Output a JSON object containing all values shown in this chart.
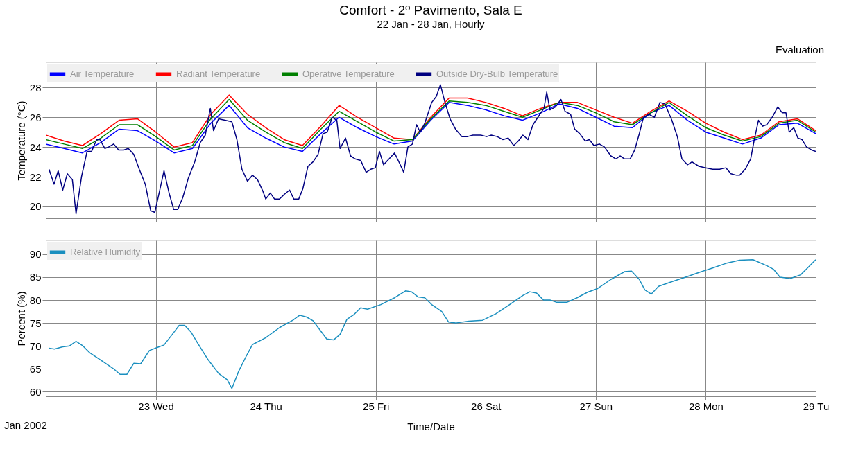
{
  "chart_data": [
    {
      "type": "line",
      "title": "Comfort - 2º Pavimento, Sala E",
      "subtitle": "22 Jan - 28 Jan, Hourly",
      "ylabel": "Temperature (°C)",
      "annotations": [
        "Evaluation"
      ],
      "xlim": [
        "2002-01-22T00:00",
        "2002-01-29T00:00"
      ],
      "xticks": [
        {
          "value": "2002-01-23",
          "label": null
        },
        {
          "value": "2002-01-24",
          "label": null
        },
        {
          "value": "2002-01-25",
          "label": null
        },
        {
          "value": "2002-01-26",
          "label": null
        },
        {
          "value": "2002-01-27",
          "label": null
        },
        {
          "value": "2002-01-28",
          "label": null
        },
        {
          "value": "2002-01-29",
          "label": null
        }
      ],
      "ylim": [
        19.2,
        29.7
      ],
      "yticks": [
        20,
        22,
        24,
        26,
        28
      ],
      "grid": true,
      "legend": "top left",
      "tick_labels": "y",
      "x": [
        "2002-01-22T00:00",
        "2002-01-22T04:00",
        "2002-01-22T08:00",
        "2002-01-22T12:00",
        "2002-01-22T16:00",
        "2002-01-22T20:00",
        "2002-01-23T00:00",
        "2002-01-23T04:00",
        "2002-01-23T08:00",
        "2002-01-23T12:00",
        "2002-01-23T16:00",
        "2002-01-23T20:00",
        "2002-01-24T00:00",
        "2002-01-24T04:00",
        "2002-01-24T08:00",
        "2002-01-24T12:00",
        "2002-01-24T16:00",
        "2002-01-24T20:00",
        "2002-01-25T00:00",
        "2002-01-25T04:00",
        "2002-01-25T08:00",
        "2002-01-25T12:00",
        "2002-01-25T16:00",
        "2002-01-25T20:00",
        "2002-01-26T00:00",
        "2002-01-26T04:00",
        "2002-01-26T08:00",
        "2002-01-26T12:00",
        "2002-01-26T16:00",
        "2002-01-26T20:00",
        "2002-01-27T00:00",
        "2002-01-27T04:00",
        "2002-01-27T08:00",
        "2002-01-27T12:00",
        "2002-01-27T16:00",
        "2002-01-27T20:00",
        "2002-01-28T00:00",
        "2002-01-28T04:00",
        "2002-01-28T08:00",
        "2002-01-28T12:00",
        "2002-01-28T16:00",
        "2002-01-28T20:00",
        "2002-01-29T00:00"
      ],
      "series": [
        {
          "name": "Air Temperature",
          "color": "#0000ff",
          "values": [
            24.2,
            23.9,
            23.6,
            24.3,
            25.2,
            25.1,
            24.4,
            23.6,
            23.9,
            25.6,
            26.8,
            25.3,
            24.6,
            24.0,
            23.7,
            24.9,
            26.0,
            25.3,
            24.7,
            24.2,
            24.4,
            25.8,
            27.0,
            26.8,
            26.5,
            26.1,
            25.8,
            26.3,
            26.9,
            26.6,
            26.0,
            25.4,
            25.3,
            26.3,
            26.8,
            25.8,
            25.0,
            24.6,
            24.2,
            24.6,
            25.5,
            25.6,
            24.9
          ]
        },
        {
          "name": "Radiant Temperature",
          "color": "#ff0000",
          "values": [
            24.8,
            24.4,
            24.1,
            24.9,
            25.8,
            25.9,
            25.0,
            24.0,
            24.3,
            26.2,
            27.5,
            26.2,
            25.3,
            24.5,
            24.1,
            25.4,
            26.8,
            26.0,
            25.3,
            24.6,
            24.5,
            26.0,
            27.3,
            27.3,
            27.0,
            26.6,
            26.1,
            26.6,
            27.0,
            27.0,
            26.5,
            26.0,
            25.6,
            26.4,
            27.1,
            26.4,
            25.6,
            25.0,
            24.5,
            24.8,
            25.7,
            25.9,
            25.1
          ]
        },
        {
          "name": "Operative Temperature",
          "color": "#008000",
          "values": [
            24.5,
            24.2,
            23.9,
            24.6,
            25.5,
            25.5,
            24.7,
            23.8,
            24.1,
            25.9,
            27.2,
            25.8,
            25.0,
            24.3,
            23.9,
            25.2,
            26.4,
            25.7,
            25.0,
            24.4,
            24.5,
            25.9,
            27.1,
            27.0,
            26.8,
            26.4,
            26.0,
            26.5,
            27.0,
            26.8,
            26.3,
            25.7,
            25.5,
            26.3,
            27.0,
            26.1,
            25.3,
            24.8,
            24.4,
            24.7,
            25.6,
            25.8,
            25.0
          ]
        },
        {
          "name": "Outside Dry-Bulb Temperature",
          "color": "#000080",
          "x": [
            "2002-01-22T00:42",
            "2002-01-22T01:48",
            "2002-01-22T02:42",
            "2002-01-22T03:42",
            "2002-01-22T04:42",
            "2002-01-22T05:48",
            "2002-01-22T06:36",
            "2002-01-22T07:48",
            "2002-01-22T09:00",
            "2002-01-22T10:00",
            "2002-01-22T11:06",
            "2002-01-22T11:48",
            "2002-01-22T12:54",
            "2002-01-22T13:42",
            "2002-01-22T14:48",
            "2002-01-22T15:54",
            "2002-01-22T17:00",
            "2002-01-22T18:00",
            "2002-01-22T19:12",
            "2002-01-22T20:24",
            "2002-01-22T21:42",
            "2002-01-22T22:54",
            "2002-01-22T23:48",
            "2002-01-23T00:48",
            "2002-01-23T01:48",
            "2002-01-23T02:54",
            "2002-01-23T03:54",
            "2002-01-23T04:48",
            "2002-01-23T05:54",
            "2002-01-23T07:06",
            "2002-01-23T08:30",
            "2002-01-23T09:42",
            "2002-01-23T10:48",
            "2002-01-23T11:54",
            "2002-01-23T12:36",
            "2002-01-23T13:42",
            "2002-01-23T15:06",
            "2002-01-23T16:36",
            "2002-01-23T17:42",
            "2002-01-23T18:48",
            "2002-01-23T20:00",
            "2002-01-23T21:06",
            "2002-01-23T22:12",
            "2002-01-23T23:24",
            "2002-01-24T00:00",
            "2002-01-24T01:00",
            "2002-01-24T01:54",
            "2002-01-24T03:00",
            "2002-01-24T04:00",
            "2002-01-24T05:12",
            "2002-01-24T06:06",
            "2002-01-24T07:12",
            "2002-01-24T08:06",
            "2002-01-24T09:12",
            "2002-01-24T10:18",
            "2002-01-24T11:24",
            "2002-01-24T12:30",
            "2002-01-24T13:24",
            "2002-01-24T14:30",
            "2002-01-24T15:30",
            "2002-01-24T16:12",
            "2002-01-24T17:24",
            "2002-01-24T18:30",
            "2002-01-24T19:30",
            "2002-01-24T20:42",
            "2002-01-24T21:54",
            "2002-01-24T22:54",
            "2002-01-24T23:54",
            "2002-01-25T00:48",
            "2002-01-25T01:42",
            "2002-01-25T02:54",
            "2002-01-25T04:06",
            "2002-01-25T05:12",
            "2002-01-25T06:06",
            "2002-01-25T07:00",
            "2002-01-25T08:00",
            "2002-01-25T08:54",
            "2002-01-25T09:42",
            "2002-01-25T10:42",
            "2002-01-25T12:12",
            "2002-01-25T13:12",
            "2002-01-25T14:06",
            "2002-01-25T15:06",
            "2002-01-25T16:12",
            "2002-01-25T17:24",
            "2002-01-25T18:48",
            "2002-01-25T20:00",
            "2002-01-25T21:12",
            "2002-01-25T22:54",
            "2002-01-26T00:12",
            "2002-01-26T01:12",
            "2002-01-26T02:30",
            "2002-01-26T03:42",
            "2002-01-26T04:54",
            "2002-01-26T06:06",
            "2002-01-26T07:06",
            "2002-01-26T08:06",
            "2002-01-26T09:12",
            "2002-01-26T10:18",
            "2002-01-26T11:48",
            "2002-01-26T12:42",
            "2002-01-26T13:18",
            "2002-01-26T14:00",
            "2002-01-26T15:12",
            "2002-01-26T16:24",
            "2002-01-26T17:18",
            "2002-01-26T18:30",
            "2002-01-26T19:24",
            "2002-01-26T20:30",
            "2002-01-26T21:42",
            "2002-01-26T22:36",
            "2002-01-26T23:36",
            "2002-01-27T00:48",
            "2002-01-27T01:54",
            "2002-01-27T03:18",
            "2002-01-27T04:24",
            "2002-01-27T05:18",
            "2002-01-27T06:18",
            "2002-01-27T07:30",
            "2002-01-27T08:30",
            "2002-01-27T09:30",
            "2002-01-27T10:24",
            "2002-01-27T11:36",
            "2002-01-27T12:48",
            "2002-01-27T14:00",
            "2002-01-27T15:06",
            "2002-01-27T16:36",
            "2002-01-27T17:48",
            "2002-01-27T18:48",
            "2002-01-27T20:00",
            "2002-01-27T21:00",
            "2002-01-27T22:30",
            "2002-01-28T00:00",
            "2002-01-28T01:30",
            "2002-01-28T03:00",
            "2002-01-28T04:24",
            "2002-01-28T05:30",
            "2002-01-28T06:42",
            "2002-01-28T07:24",
            "2002-01-28T08:36",
            "2002-01-28T09:48",
            "2002-01-28T10:36",
            "2002-01-28T11:30",
            "2002-01-28T12:24",
            "2002-01-28T13:18",
            "2002-01-28T14:30",
            "2002-01-28T15:42",
            "2002-01-28T16:42",
            "2002-01-28T17:30",
            "2002-01-28T18:12",
            "2002-01-28T19:12",
            "2002-01-28T20:06",
            "2002-01-28T21:00",
            "2002-01-28T22:00",
            "2002-01-28T23:06",
            "2002-01-29T00:00"
          ],
          "values": [
            22.5,
            21.5,
            22.4,
            21.1,
            22.2,
            21.8,
            19.5,
            22.0,
            23.7,
            23.7,
            24.5,
            24.5,
            23.9,
            24.0,
            24.2,
            23.8,
            23.8,
            23.9,
            23.5,
            22.5,
            21.5,
            19.7,
            19.6,
            21.0,
            22.4,
            20.9,
            19.8,
            19.8,
            20.6,
            21.9,
            23.0,
            24.3,
            24.8,
            26.6,
            25.1,
            25.9,
            25.8,
            25.7,
            24.5,
            22.5,
            21.7,
            22.1,
            21.8,
            21.0,
            20.5,
            20.9,
            20.5,
            20.5,
            20.8,
            21.1,
            20.5,
            20.5,
            21.2,
            22.7,
            23.0,
            23.5,
            24.9,
            25.0,
            26.0,
            25.8,
            23.9,
            24.6,
            23.4,
            23.2,
            23.1,
            22.3,
            22.5,
            22.6,
            23.7,
            22.8,
            23.2,
            23.6,
            22.9,
            22.3,
            24.0,
            24.2,
            25.5,
            25.0,
            25.6,
            27.0,
            27.4,
            28.2,
            27.0,
            25.9,
            25.2,
            24.7,
            24.7,
            24.8,
            24.8,
            24.7,
            24.8,
            24.7,
            24.5,
            24.6,
            24.1,
            24.4,
            24.8,
            24.5,
            25.5,
            26.2,
            26.6,
            27.7,
            26.5,
            26.7,
            27.2,
            26.4,
            26.2,
            25.2,
            24.9,
            24.4,
            24.5,
            24.1,
            24.2,
            24.0,
            23.4,
            23.2,
            23.4,
            23.2,
            23.2,
            23.8,
            24.9,
            26.0,
            26.2,
            26.0,
            27.0,
            26.9,
            25.8,
            24.7,
            23.2,
            22.8,
            23.0,
            22.7,
            22.6,
            22.5,
            22.5,
            22.6,
            22.2,
            22.1,
            22.1,
            22.5,
            23.2,
            24.5,
            25.8,
            25.4,
            25.5,
            26.0,
            26.7,
            26.3,
            26.3,
            25.0,
            25.3,
            24.6,
            24.5,
            24.0,
            23.8,
            23.7
          ]
        }
      ]
    },
    {
      "type": "line",
      "ylabel": "Percent (%)",
      "xlabel": "Time/Date",
      "annotations": [
        "Jan 2002"
      ],
      "xlim": [
        "2002-01-22T00:00",
        "2002-01-29T00:00"
      ],
      "xticks": [
        {
          "value": "2002-01-23",
          "label": "23 Wed"
        },
        {
          "value": "2002-01-24",
          "label": "24 Thu"
        },
        {
          "value": "2002-01-25",
          "label": "25 Fri"
        },
        {
          "value": "2002-01-26",
          "label": "26 Sat"
        },
        {
          "value": "2002-01-27",
          "label": "27 Sun"
        },
        {
          "value": "2002-01-28",
          "label": "28 Mon"
        },
        {
          "value": "2002-01-29",
          "label": "29 Tu"
        }
      ],
      "ylim": [
        59,
        93
      ],
      "yticks": [
        60,
        65,
        70,
        75,
        80,
        85,
        90
      ],
      "grid": true,
      "legend": "top left",
      "series": [
        {
          "name": "Relative Humidity",
          "color": "#1a8fbf",
          "x": [
            "2002-01-22T00:42",
            "2002-01-22T01:54",
            "2002-01-22T03:42",
            "2002-01-22T05:12",
            "2002-01-22T06:36",
            "2002-01-22T08:06",
            "2002-01-22T09:36",
            "2002-01-22T12:36",
            "2002-01-22T14:48",
            "2002-01-22T16:12",
            "2002-01-22T17:42",
            "2002-01-22T19:12",
            "2002-01-22T20:42",
            "2002-01-22T22:36",
            "2002-01-23T00:24",
            "2002-01-23T01:48",
            "2002-01-23T03:36",
            "2002-01-23T05:06",
            "2002-01-23T06:18",
            "2002-01-23T07:42",
            "2002-01-23T09:12",
            "2002-01-23T11:24",
            "2002-01-23T13:42",
            "2002-01-23T15:36",
            "2002-01-23T16:36",
            "2002-01-23T18:06",
            "2002-01-23T19:36",
            "2002-01-23T21:06",
            "2002-01-24T00:00",
            "2002-01-24T03:00",
            "2002-01-24T05:54",
            "2002-01-24T07:24",
            "2002-01-24T08:54",
            "2002-01-24T10:18",
            "2002-01-24T11:48",
            "2002-01-24T13:18",
            "2002-01-24T14:48",
            "2002-01-24T16:12",
            "2002-01-24T17:42",
            "2002-01-24T19:12",
            "2002-01-24T20:42",
            "2002-01-24T22:12",
            "2002-01-25T01:06",
            "2002-01-25T04:06",
            "2002-01-25T06:30",
            "2002-01-25T07:48",
            "2002-01-25T09:12",
            "2002-01-25T10:42",
            "2002-01-25T12:12",
            "2002-01-25T14:24",
            "2002-01-25T15:54",
            "2002-01-25T17:24",
            "2002-01-25T20:18",
            "2002-01-25T23:18",
            "2002-01-26T02:12",
            "2002-01-26T05:12",
            "2002-01-26T08:06",
            "2002-01-26T09:36",
            "2002-01-26T11:06",
            "2002-01-26T12:36",
            "2002-01-26T14:00",
            "2002-01-26T15:30",
            "2002-01-26T17:42",
            "2002-01-26T19:54",
            "2002-01-26T22:12",
            "2002-01-27T00:24",
            "2002-01-27T03:18",
            "2002-01-27T06:18",
            "2002-01-27T07:48",
            "2002-01-27T09:30",
            "2002-01-27T10:42",
            "2002-01-27T12:06",
            "2002-01-27T13:42",
            "2002-01-27T16:36",
            "2002-01-27T19:36",
            "2002-01-27T22:30",
            "2002-01-28T01:30",
            "2002-01-28T04:24",
            "2002-01-28T07:24",
            "2002-01-28T10:18",
            "2002-01-28T13:18",
            "2002-01-28T14:48",
            "2002-01-28T16:12",
            "2002-01-28T18:24",
            "2002-01-28T20:42",
            "2002-01-28T22:12",
            "2002-01-29T00:00"
          ],
          "values": [
            69.5,
            69.3,
            69.8,
            70.0,
            71.0,
            70.0,
            68.5,
            66.5,
            65.0,
            63.8,
            63.8,
            66.2,
            66.1,
            69.0,
            69.7,
            70.2,
            72.5,
            74.5,
            74.5,
            73.0,
            70.5,
            67.0,
            64.0,
            62.6,
            60.7,
            64.5,
            67.5,
            70.3,
            71.8,
            74.0,
            75.6,
            76.7,
            76.3,
            75.5,
            73.5,
            71.5,
            71.3,
            72.5,
            75.8,
            76.8,
            78.3,
            78.0,
            79.0,
            80.5,
            82.0,
            81.8,
            80.7,
            80.5,
            79.0,
            77.5,
            75.2,
            75.0,
            75.4,
            75.6,
            77.0,
            79.0,
            81.0,
            81.8,
            81.5,
            80.0,
            80.0,
            79.5,
            79.5,
            80.5,
            81.7,
            82.5,
            84.5,
            86.2,
            86.3,
            84.5,
            82.2,
            81.3,
            83.0,
            84.0,
            85.0,
            86.0,
            87.0,
            88.0,
            88.7,
            88.8,
            87.5,
            86.7,
            85.0,
            84.7,
            85.5,
            87.0,
            88.8
          ]
        }
      ]
    }
  ]
}
